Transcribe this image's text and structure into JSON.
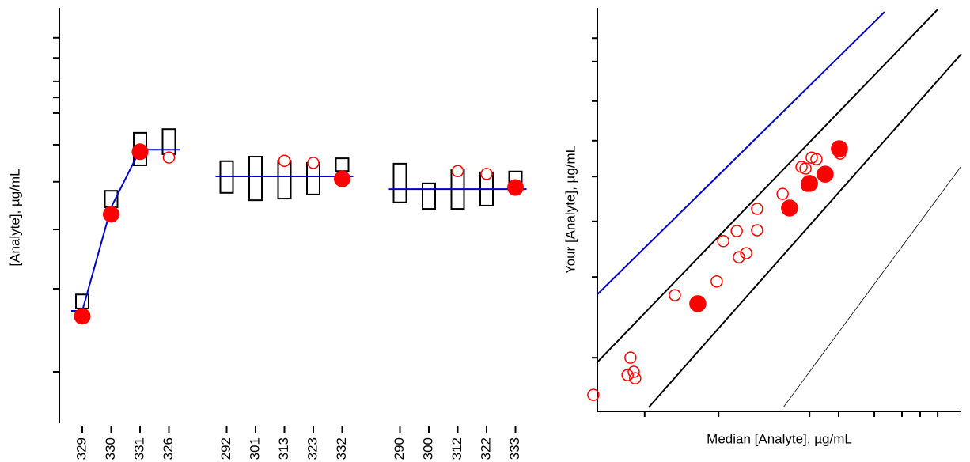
{
  "chart_data": [
    {
      "type": "box",
      "y_label": "[Analyte], µg/mL",
      "categories": [
        "329",
        "330",
        "331",
        "326",
        null,
        "292",
        "301",
        "313",
        "323",
        "332",
        null,
        "290",
        "300",
        "312",
        "322",
        "333"
      ],
      "box_low": [
        27.9,
        52.5,
        62.7,
        65.4,
        null,
        56.0,
        54.2,
        54.6,
        55.6,
        61.3,
        null,
        53.7,
        52.1,
        52.1,
        52.9,
        57.1
      ],
      "box_high": [
        31.3,
        56.5,
        70.6,
        71.5,
        null,
        63.7,
        64.8,
        63.8,
        63.3,
        64.4,
        null,
        63.1,
        58.3,
        61.7,
        61.0,
        61.2
      ],
      "filled_points": [
        26.0,
        50.8,
        66.0,
        null,
        null,
        null,
        null,
        null,
        null,
        59.4,
        null,
        null,
        null,
        null,
        null,
        57.3
      ],
      "open_points": [
        null,
        null,
        null,
        64.6,
        null,
        null,
        null,
        63.8,
        63.3,
        null,
        null,
        null,
        null,
        61.3,
        60.6,
        null
      ],
      "target": [
        27.3,
        52.5,
        66.5,
        66.5,
        null,
        60.0,
        60.0,
        60.0,
        60.0,
        60.0,
        null,
        56.9,
        56.9,
        56.9,
        56.9,
        56.9
      ],
      "box_color": "#000000",
      "point_color": "#ff0000",
      "target_color": "#0000cc",
      "ylim": [
        0,
        100
      ],
      "yticks": [
        12.5,
        32.7,
        47.1,
        58.7,
        67.7,
        75.4,
        79.2,
        83.1,
        88.8,
        93.7
      ]
    },
    {
      "type": "scatter",
      "x_label": "Median [Analyte], µg/mL",
      "y_label": "Your [Analyte], µg/mL",
      "series": [
        {
          "color": "#ff0000",
          "filled": false,
          "x": [
            -1.1,
            9.1,
            8.3,
            10.0,
            10.4,
            21.3,
            32.8,
            34.6,
            38.3,
            38.9,
            40.9,
            43.9,
            43.9,
            50.9,
            56.1,
            57.2,
            58.9,
            60.2,
            57.6,
            66.7
          ],
          "values": [
            4.1,
            13.3,
            9.0,
            9.8,
            8.2,
            28.8,
            32.2,
            42.2,
            44.7,
            38.2,
            39.2,
            44.9,
            50.2,
            53.9,
            60.6,
            60.2,
            62.9,
            62.5,
            55.9,
            63.9
          ]
        },
        {
          "color": "#ff0000",
          "filled": true,
          "x": [
            27.6,
            52.8,
            58.3,
            62.6,
            66.5
          ],
          "values": [
            26.7,
            50.4,
            56.5,
            58.8,
            65.1
          ]
        }
      ],
      "lines": [
        {
          "color": "#0000cc",
          "width": 2,
          "x": [
            0,
            78.9
          ],
          "values": [
            29.0,
            99.0
          ]
        },
        {
          "color": "#000000",
          "width": 2,
          "x": [
            0,
            93.5
          ],
          "values": [
            12.2,
            99.6
          ]
        },
        {
          "color": "#000000",
          "width": 2,
          "x": [
            14.1,
            100
          ],
          "values": [
            1.0,
            88.6
          ]
        },
        {
          "color": "#000000",
          "width": 0.8,
          "x": [
            51.1,
            100
          ],
          "values": [
            1.0,
            60.8
          ]
        }
      ],
      "xlim": [
        0,
        100
      ],
      "ylim": [
        0,
        100
      ],
      "xticks": [
        13.0,
        33.3,
        58.3,
        66.3,
        76.1,
        83.7,
        88.7,
        93.5
      ],
      "yticks": [
        13.3,
        33.3,
        47.1,
        58.2,
        67.1,
        76.9,
        86.7,
        92.5
      ]
    }
  ]
}
